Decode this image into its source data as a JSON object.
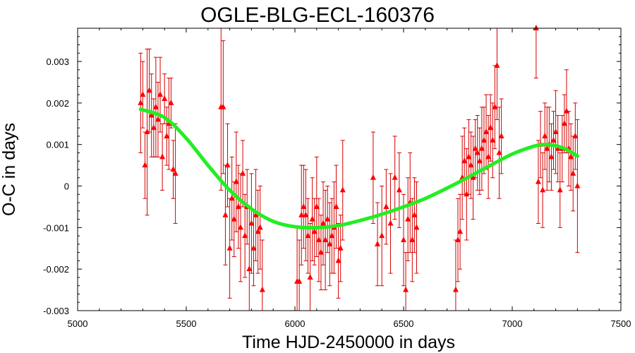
{
  "chart_data": {
    "type": "scatter",
    "title": "OGLE-BLG-ECL-160376",
    "xlabel": "Time HJD-2450000 in days",
    "ylabel": "O-C in days",
    "xlim": [
      5000,
      7500
    ],
    "ylim": [
      -0.003,
      0.0038
    ],
    "x_ticks": [
      {
        "value": 5000,
        "label": "5000"
      },
      {
        "value": 5500,
        "label": "5500"
      },
      {
        "value": 6000,
        "label": "6000"
      },
      {
        "value": 6500,
        "label": "6500"
      },
      {
        "value": 7000,
        "label": "7000"
      },
      {
        "value": 7500,
        "label": "7500"
      }
    ],
    "y_ticks": [
      {
        "value": 0.003,
        "label": "0.003"
      },
      {
        "value": 0.002,
        "label": "0.002"
      },
      {
        "value": 0.001,
        "label": "0.001"
      },
      {
        "value": 0,
        "label": "0"
      },
      {
        "value": -0.001,
        "label": "-0.001"
      },
      {
        "value": -0.002,
        "label": "-0.002"
      },
      {
        "value": -0.003,
        "label": "-0.003"
      }
    ],
    "grid": false,
    "legend": "none",
    "colors": {
      "points": "#ff0000",
      "error_bars": "#d40000",
      "fit": "#22ee22"
    },
    "series": [
      {
        "type": "scatter_with_error_bars",
        "x": [
          5290,
          5300,
          5310,
          5320,
          5330,
          5340,
          5350,
          5360,
          5370,
          5380,
          5390,
          5400,
          5410,
          5420,
          5430,
          5440,
          5450,
          5660,
          5670,
          5680,
          5690,
          5700,
          5710,
          5720,
          5730,
          5740,
          5750,
          5760,
          5770,
          5780,
          5790,
          5800,
          5810,
          5820,
          5830,
          5840,
          5850,
          6010,
          6020,
          6030,
          6040,
          6050,
          6060,
          6070,
          6080,
          6090,
          6100,
          6110,
          6120,
          6130,
          6140,
          6150,
          6160,
          6170,
          6180,
          6190,
          6200,
          6210,
          6220,
          6360,
          6380,
          6400,
          6420,
          6440,
          6460,
          6480,
          6500,
          6510,
          6520,
          6530,
          6540,
          6550,
          6560,
          6740,
          6750,
          6760,
          6770,
          6780,
          6790,
          6800,
          6810,
          6820,
          6830,
          6840,
          6850,
          6860,
          6870,
          6880,
          6890,
          6900,
          6910,
          6920,
          6930,
          6940,
          6950,
          7110,
          7120,
          7130,
          7140,
          7150,
          7160,
          7170,
          7180,
          7190,
          7200,
          7210,
          7220,
          7230,
          7240,
          7250,
          7260,
          7270,
          7280,
          7290,
          7300
        ],
        "y": [
          0.002,
          0.0022,
          0.0005,
          0.0013,
          0.0023,
          0.0017,
          0.0014,
          0.0019,
          0.0016,
          0.0022,
          0.0007,
          0.0021,
          0.0012,
          0.0015,
          0.002,
          0.0004,
          0.0003,
          0.0019,
          0.0019,
          -0.0007,
          0.0005,
          -0.0015,
          -0.0003,
          -0.0008,
          0.0001,
          -0.0005,
          -0.001,
          0.0003,
          -0.0012,
          -0.0005,
          -0.002,
          -0.0009,
          -0.0015,
          -0.0007,
          -0.0011,
          -0.001,
          -0.0025,
          -0.0023,
          -0.0023,
          -0.0007,
          -0.0005,
          -0.0007,
          -0.0012,
          -0.0022,
          -0.0008,
          -0.0011,
          -0.0005,
          -0.0013,
          -0.0016,
          -0.0009,
          -0.0013,
          -0.0008,
          -0.0014,
          -0.0012,
          -0.001,
          -0.0005,
          -0.0018,
          -0.0015,
          -0.0001,
          0.0002,
          -0.0014,
          -0.0012,
          -0.0005,
          -0.0009,
          0.0002,
          -0.0001,
          -0.0013,
          -0.0025,
          -0.0008,
          -0.0004,
          -0.0013,
          -0.0007,
          -0.001,
          -0.0025,
          -0.0013,
          -0.0011,
          0.0002,
          0.0006,
          -0.0002,
          0.0007,
          0.0005,
          0.0002,
          0.0009,
          0.0008,
          0.0006,
          0.0009,
          0.0011,
          0.0013,
          0.0007,
          0.0014,
          0.0011,
          0.0019,
          0.0029,
          0.0008,
          0.0012,
          0.0038,
          0.0001,
          0.001,
          -0.0001,
          0.0012,
          0.0009,
          0.001,
          0.0007,
          0.0011,
          0.0013,
          0.0009,
          -0.0001,
          0.0009,
          0.0015,
          0.0018,
          0.0009,
          0.0007,
          0.0003,
          0.0012,
          0.0
        ],
        "err": [
          0.0012,
          0.0008,
          0.0008,
          0.002,
          0.001,
          0.001,
          0.0007,
          0.0012,
          0.0009,
          0.0009,
          0.0008,
          0.0006,
          0.0007,
          0.0011,
          0.0006,
          0.0007,
          0.0012,
          0.002,
          0.0016,
          0.0012,
          0.001,
          0.0012,
          0.001,
          0.0009,
          0.0012,
          0.001,
          0.0013,
          0.0008,
          0.001,
          0.0009,
          0.0015,
          0.0012,
          0.0009,
          0.0011,
          0.001,
          0.001,
          0.0012,
          0.0013,
          0.001,
          0.0012,
          0.001,
          0.0011,
          0.0009,
          0.0013,
          0.001,
          0.0008,
          0.0012,
          0.001,
          0.0009,
          0.001,
          0.0012,
          0.0008,
          0.001,
          0.0009,
          0.0011,
          0.001,
          0.0009,
          0.0008,
          0.0012,
          0.0011,
          0.001,
          0.0012,
          0.0009,
          0.0012,
          0.001,
          0.0009,
          0.0011,
          0.0009,
          0.001,
          0.0012,
          0.001,
          0.0009,
          0.0011,
          0.0012,
          0.001,
          0.0009,
          0.001,
          0.0008,
          0.0011,
          0.0009,
          0.0008,
          0.001,
          0.0007,
          0.0009,
          0.0008,
          0.001,
          0.0008,
          0.0009,
          0.001,
          0.0008,
          0.0009,
          0.001,
          0.0013,
          0.0011,
          0.0009,
          0.0012,
          0.001,
          0.0008,
          0.0009,
          0.0008,
          0.001,
          0.0009,
          0.0008,
          0.0007,
          0.001,
          0.0008,
          0.0009,
          0.0008,
          0.0007,
          0.001,
          0.0009,
          0.0008,
          0.0009,
          0.0008,
          0.0016
        ]
      },
      {
        "type": "fit_line",
        "x": [
          5290,
          5400,
          5500,
          5600,
          5700,
          5800,
          5900,
          6000,
          6100,
          6200,
          6300,
          6400,
          6500,
          6600,
          6700,
          6800,
          6900,
          7000,
          7100,
          7150,
          7200,
          7250,
          7300
        ],
        "y": [
          0.00185,
          0.00165,
          0.00115,
          0.0005,
          -0.0001,
          -0.00055,
          -0.00085,
          -0.00098,
          -0.001,
          -0.00095,
          -0.00083,
          -0.00068,
          -0.0005,
          -0.0003,
          -5e-05,
          0.00022,
          0.0005,
          0.00077,
          0.00096,
          0.001,
          0.00097,
          0.00088,
          0.00072
        ]
      }
    ]
  }
}
